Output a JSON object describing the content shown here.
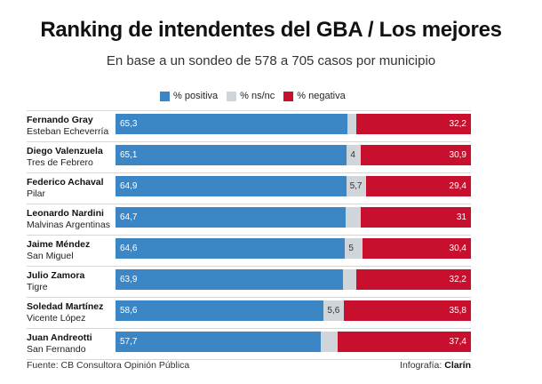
{
  "title": "Ranking de intendentes del GBA / Los mejores",
  "subtitle": "En base a un sondeo de 578 a 705 casos por municipio",
  "colors": {
    "positive": "#3d86c6",
    "nsnc": "#d0d5d9",
    "negative": "#c8102e"
  },
  "chart_data": {
    "type": "bar",
    "stacked": true,
    "orientation": "horizontal",
    "title": "Ranking de intendentes del GBA / Los mejores",
    "subtitle": "En base a un sondeo de 578 a 705 casos por municipio",
    "xlim": [
      0,
      100
    ],
    "legend": [
      "% positiva",
      "% ns/nc",
      "% negativa"
    ],
    "legend_position": "top",
    "categories": [
      {
        "name": "Fernando Gray",
        "municipio": "Esteban Echeverría",
        "positiva": 65.3,
        "nsnc": 2.5,
        "negativa": 32.2,
        "positiva_label": "65,3",
        "nsnc_label": "",
        "negativa_label": "32,2"
      },
      {
        "name": "Diego Valenzuela",
        "municipio": "Tres de Febrero",
        "positiva": 65.1,
        "nsnc": 4,
        "negativa": 30.9,
        "positiva_label": "65,1",
        "nsnc_label": "4",
        "negativa_label": "30,9"
      },
      {
        "name": "Federico Achaval",
        "municipio": "Pilar",
        "positiva": 64.9,
        "nsnc": 5.7,
        "negativa": 29.4,
        "positiva_label": "64,9",
        "nsnc_label": "5,7",
        "negativa_label": "29,4"
      },
      {
        "name": "Leonardo Nardini",
        "municipio": "Malvinas Argentinas",
        "positiva": 64.7,
        "nsnc": 4.3,
        "negativa": 31,
        "positiva_label": "64,7",
        "nsnc_label": "",
        "negativa_label": "31"
      },
      {
        "name": "Jaime Méndez",
        "municipio": "San Miguel",
        "positiva": 64.6,
        "nsnc": 5,
        "negativa": 30.4,
        "positiva_label": "64,6",
        "nsnc_label": "5",
        "negativa_label": "30,4"
      },
      {
        "name": "Julio Zamora",
        "municipio": "Tigre",
        "positiva": 63.9,
        "nsnc": 3.9,
        "negativa": 32.2,
        "positiva_label": "63,9",
        "nsnc_label": "",
        "negativa_label": "32,2"
      },
      {
        "name": "Soledad Martínez",
        "municipio": "Vicente López",
        "positiva": 58.6,
        "nsnc": 5.6,
        "negativa": 35.8,
        "positiva_label": "58,6",
        "nsnc_label": "5,6",
        "negativa_label": "35,8"
      },
      {
        "name": "Juan Andreotti",
        "municipio": "San Fernando",
        "positiva": 57.7,
        "nsnc": 4.9,
        "negativa": 37.4,
        "positiva_label": "57,7",
        "nsnc_label": "",
        "negativa_label": "37,4"
      }
    ]
  },
  "footer": {
    "source": "Fuente: CB Consultora Opinión Pública",
    "credit_prefix": "Infografía:",
    "credit_name": "Clarín"
  }
}
